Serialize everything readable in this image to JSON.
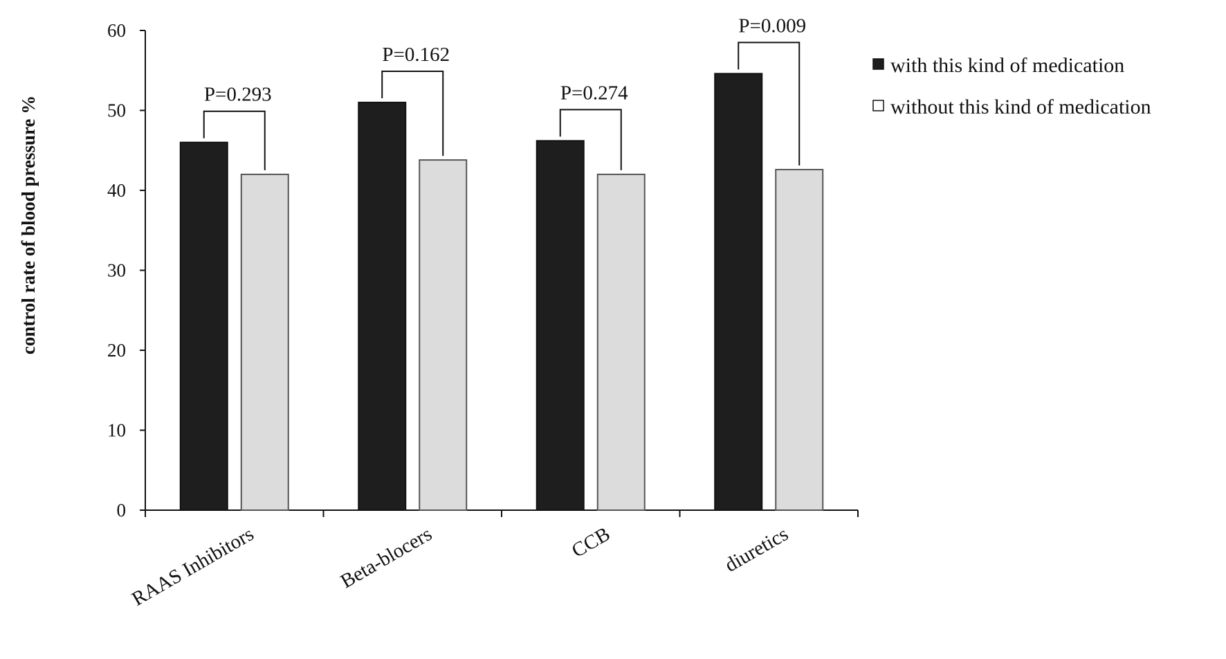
{
  "chart_data": {
    "type": "bar",
    "title": "",
    "xlabel": "",
    "ylabel": "control rate of  blood pressure  %",
    "ylim": [
      0,
      60
    ],
    "yticks": [
      0,
      10,
      20,
      30,
      40,
      50,
      60
    ],
    "categories": [
      "RAAS Inhibitors",
      "Beta-blocers",
      "CCB",
      "diuretics"
    ],
    "series": [
      {
        "name": "with this kind of medication",
        "color": "#1e1e1e",
        "values": [
          46,
          51,
          46.2,
          54.6
        ]
      },
      {
        "name": "without this kind of medication",
        "color": "#dcdcdc",
        "values": [
          42,
          43.8,
          42,
          42.6
        ]
      }
    ],
    "annotations": [
      "P=0.293",
      "P=0.162",
      "P=0.274",
      "P=0.009"
    ],
    "legend_position": "top-right",
    "grid": false
  }
}
